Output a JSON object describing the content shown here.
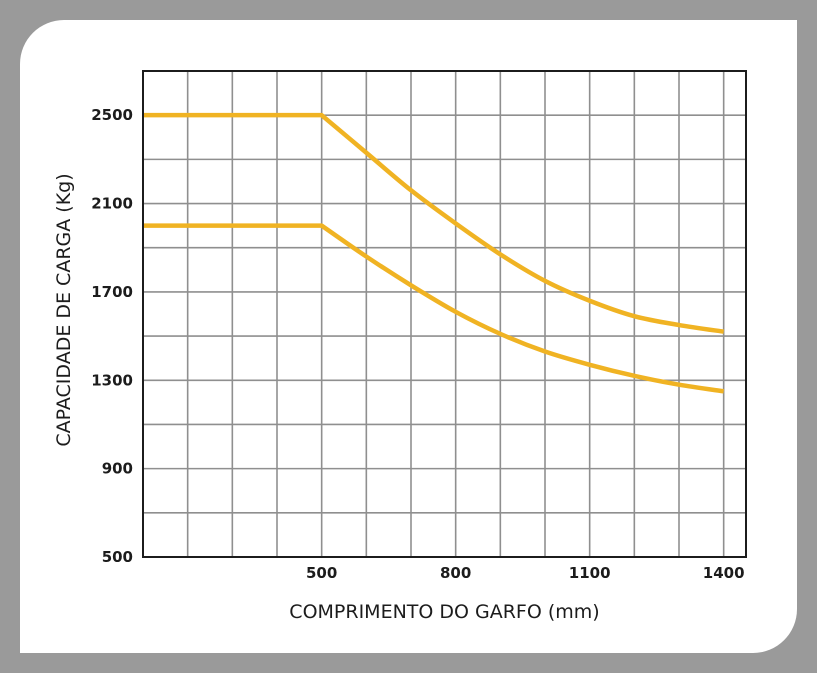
{
  "chart_data": {
    "type": "line",
    "xlabel": "COMPRIMENTO DO GARFO (mm)",
    "ylabel": "CAPACIDADE DE CARGA (Kg)",
    "xlim": [
      100,
      1450
    ],
    "ylim": [
      500,
      2700
    ],
    "x_ticks": [
      500,
      800,
      1100,
      1400
    ],
    "y_ticks": [
      500,
      900,
      1300,
      1700,
      2100,
      2500
    ],
    "grid": true,
    "grid_step_x": 100,
    "grid_step_y": 200,
    "line_color": "#f0b323",
    "series": [
      {
        "x": [
          100,
          500,
          600,
          700,
          800,
          900,
          1000,
          1100,
          1200,
          1300,
          1400
        ],
        "values": [
          2500,
          2500,
          2330,
          2160,
          2010,
          1870,
          1750,
          1660,
          1590,
          1550,
          1520
        ]
      },
      {
        "x": [
          100,
          500,
          600,
          700,
          800,
          900,
          1000,
          1100,
          1200,
          1300,
          1400
        ],
        "values": [
          2000,
          2000,
          1860,
          1730,
          1610,
          1510,
          1430,
          1370,
          1320,
          1280,
          1250
        ]
      }
    ]
  }
}
